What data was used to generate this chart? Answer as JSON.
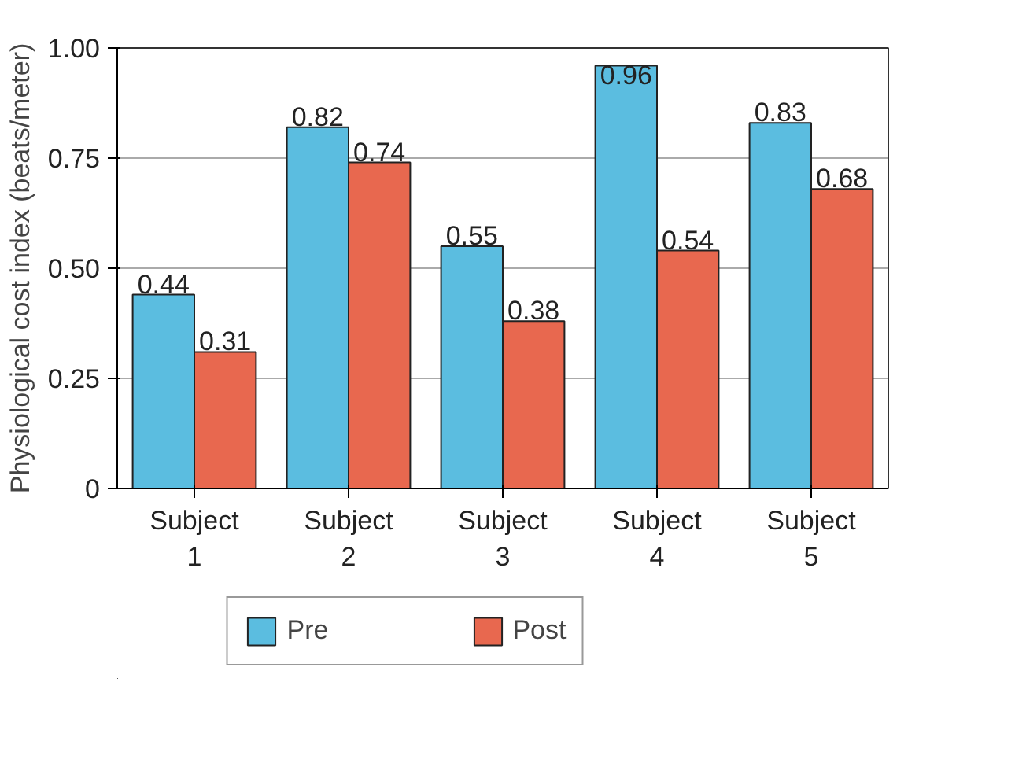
{
  "chart_data": {
    "type": "bar",
    "ylabel": "Physiological cost index (beats/meter)",
    "categories": [
      "Subject\n1",
      "Subject\n2",
      "Subject\n3",
      "Subject\n4",
      "Subject\n5"
    ],
    "series": [
      {
        "name": "Pre",
        "color": "#5bbde0",
        "values": [
          0.44,
          0.82,
          0.55,
          0.96,
          0.83
        ]
      },
      {
        "name": "Post",
        "color": "#e8684f",
        "values": [
          0.31,
          0.74,
          0.38,
          0.54,
          0.68
        ]
      }
    ],
    "ylim": [
      0,
      1.0
    ],
    "yticks": [
      {
        "value": 0,
        "label": "0"
      },
      {
        "value": 0.25,
        "label": "0.25"
      },
      {
        "value": 0.5,
        "label": "0.50"
      },
      {
        "value": 0.75,
        "label": "0.75"
      },
      {
        "value": 1.0,
        "label": "1.00"
      }
    ],
    "grid": "y",
    "legend": "bottom",
    "data_labels": true
  }
}
